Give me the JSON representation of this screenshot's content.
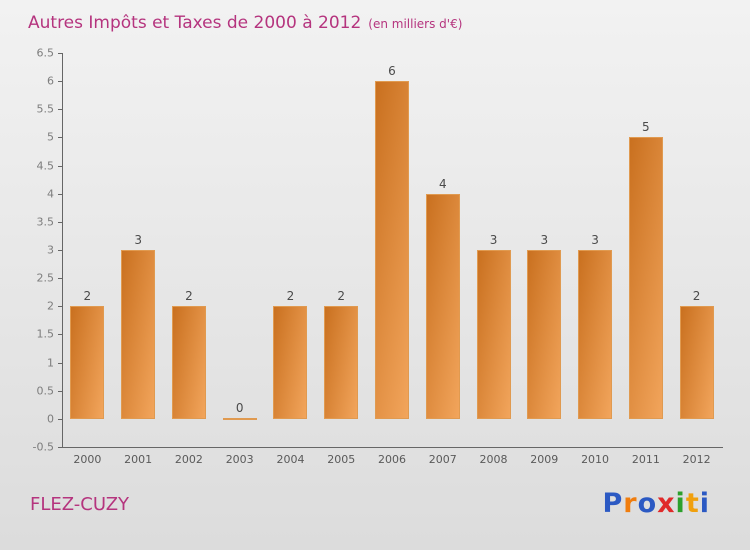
{
  "header": {
    "title": "Autres Impôts et Taxes de 2000 à 2012",
    "subtitle": "(en milliers d'€)"
  },
  "footer": {
    "commune": "FLEZ-CUZY",
    "logo": {
      "name": "Proxiti",
      "letters": [
        {
          "ch": "P",
          "color": "#2b59c3"
        },
        {
          "ch": "r",
          "color": "#f07d0e"
        },
        {
          "ch": "o",
          "color": "#2b59c3"
        },
        {
          "ch": "x",
          "color": "#e02a2a"
        },
        {
          "ch": "i",
          "color": "#2ca02c"
        },
        {
          "ch": "t",
          "color": "#f0a00e"
        },
        {
          "ch": "i",
          "color": "#2b59c3"
        }
      ]
    }
  },
  "chart_data": {
    "type": "bar",
    "title": "Autres Impôts et Taxes de 2000 à 2012",
    "subtitle": "(en milliers d'€)",
    "categories": [
      "2000",
      "2001",
      "2002",
      "2003",
      "2004",
      "2005",
      "2006",
      "2007",
      "2008",
      "2009",
      "2010",
      "2011",
      "2012"
    ],
    "values": [
      2,
      3,
      2,
      0,
      2,
      2,
      6,
      4,
      3,
      3,
      3,
      5,
      2
    ],
    "ylim": [
      -0.5,
      6.5
    ],
    "ytick_step": 0.5,
    "yticks": [
      "6.5",
      "6",
      "5.5",
      "5",
      "4.5",
      "4",
      "3.5",
      "3",
      "2.5",
      "2",
      "1.5",
      "1",
      "0.5",
      "0",
      "-0.5"
    ],
    "grid": false,
    "legend": "none",
    "colors": {
      "bar_gradient_start": "#c9701f",
      "bar_gradient_end": "#f2a55c",
      "bar_border": "#e09a50",
      "title": "#b5347e",
      "axis": "#666666",
      "tick_label": "#7d7d7d",
      "value_label": "#4a4a4a",
      "commune": "#b5347e"
    }
  }
}
